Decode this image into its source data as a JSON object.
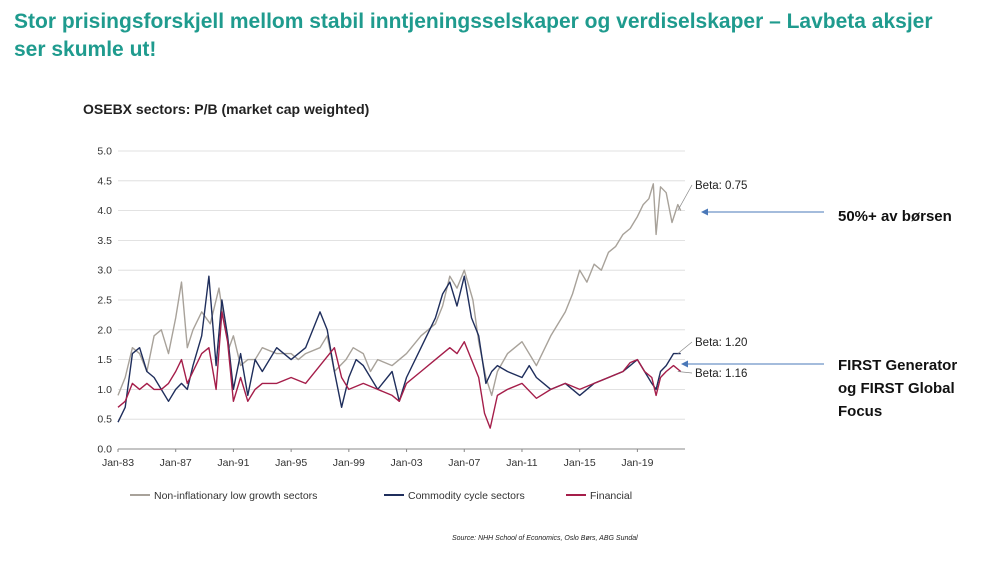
{
  "slide": {
    "title": "Stor prisingsforskjell mellom stabil inntjeningsselskaper og verdiselskaper  – Lavbeta aksjer ser skumle ut!",
    "note_low_beta": "50%+ av børsen",
    "note_high_beta": "FIRST Generator og FIRST Global Focus",
    "source": "Source: NHH School of Economics, Oslo Børs, ABG Sundal"
  },
  "chart_data": {
    "type": "line",
    "title": "OSEBX sectors: P/B (market cap weighted)",
    "xlabel": "",
    "ylabel": "",
    "xlim": [
      1983.0,
      2022.3
    ],
    "ylim": [
      0.0,
      5.0
    ],
    "x_ticks": [
      "Jan-83",
      "Jan-87",
      "Jan-91",
      "Jan-95",
      "Jan-99",
      "Jan-03",
      "Jan-07",
      "Jan-11",
      "Jan-15",
      "Jan-19"
    ],
    "y_ticks": [
      "0.0",
      "0.5",
      "1.0",
      "1.5",
      "2.0",
      "2.5",
      "3.0",
      "3.5",
      "4.0",
      "4.5",
      "5.0"
    ],
    "grid": "horizontal",
    "legend_position": "bottom",
    "colors": {
      "non_inflationary": "#a8a29a",
      "commodity": "#1f2e5c",
      "financial": "#a51e4a"
    },
    "series": [
      {
        "name": "Non-inflationary low growth sectors",
        "color": "#a8a29a",
        "x": [
          1983.0,
          1983.5,
          1984.0,
          1984.5,
          1985.0,
          1985.5,
          1986.0,
          1986.5,
          1987.0,
          1987.4,
          1987.8,
          1988.2,
          1988.8,
          1989.4,
          1990.0,
          1990.3,
          1990.7,
          1991.0,
          1991.5,
          1992.0,
          1992.5,
          1993.0,
          1994.0,
          1995.0,
          1995.5,
          1996.0,
          1997.0,
          1997.5,
          1998.0,
          1998.8,
          1999.3,
          2000.0,
          2000.5,
          2001.0,
          2002.0,
          2003.0,
          2004.0,
          2005.0,
          2005.5,
          2006.0,
          2006.5,
          2007.0,
          2007.6,
          2008.0,
          2008.5,
          2008.9,
          2009.3,
          2010.0,
          2011.0,
          2012.0,
          2013.0,
          2014.0,
          2014.5,
          2015.0,
          2015.5,
          2016.0,
          2016.5,
          2017.0,
          2017.5,
          2018.0,
          2018.5,
          2019.0,
          2019.4,
          2019.8,
          2020.1,
          2020.3,
          2020.6,
          2021.0,
          2021.4,
          2021.8,
          2022.0
        ],
        "y": [
          0.9,
          1.2,
          1.7,
          1.6,
          1.3,
          1.9,
          2.0,
          1.6,
          2.2,
          2.8,
          1.7,
          2.0,
          2.3,
          2.1,
          2.7,
          2.2,
          1.7,
          1.9,
          1.4,
          1.5,
          1.5,
          1.7,
          1.6,
          1.6,
          1.5,
          1.6,
          1.7,
          1.9,
          1.3,
          1.5,
          1.7,
          1.6,
          1.3,
          1.5,
          1.4,
          1.6,
          1.9,
          2.1,
          2.4,
          2.9,
          2.7,
          3.0,
          2.5,
          1.8,
          1.2,
          0.9,
          1.3,
          1.6,
          1.8,
          1.4,
          1.9,
          2.3,
          2.6,
          3.0,
          2.8,
          3.1,
          3.0,
          3.3,
          3.4,
          3.6,
          3.7,
          3.9,
          4.1,
          4.2,
          4.45,
          3.6,
          4.4,
          4.3,
          3.8,
          4.1,
          4.0
        ]
      },
      {
        "name": "Commodity cycle sectors",
        "color": "#1f2e5c",
        "x": [
          1983.0,
          1983.5,
          1984.0,
          1984.5,
          1985.0,
          1985.5,
          1986.0,
          1986.5,
          1987.0,
          1987.4,
          1987.8,
          1988.2,
          1988.8,
          1989.3,
          1989.8,
          1990.2,
          1990.6,
          1991.0,
          1991.5,
          1992.0,
          1992.5,
          1993.0,
          1994.0,
          1995.0,
          1996.0,
          1997.0,
          1997.5,
          1998.0,
          1998.5,
          1999.0,
          1999.5,
          2000.0,
          2001.0,
          2002.0,
          2002.5,
          2003.0,
          2004.0,
          2005.0,
          2005.5,
          2006.0,
          2006.5,
          2007.0,
          2007.5,
          2008.0,
          2008.5,
          2008.9,
          2009.3,
          2010.0,
          2011.0,
          2011.5,
          2012.0,
          2013.0,
          2014.0,
          2015.0,
          2015.5,
          2016.0,
          2017.0,
          2018.0,
          2018.5,
          2019.0,
          2019.5,
          2020.0,
          2020.3,
          2020.6,
          2021.0,
          2021.5,
          2022.0
        ],
        "y": [
          0.45,
          0.7,
          1.6,
          1.7,
          1.3,
          1.2,
          1.0,
          0.8,
          1.0,
          1.1,
          1.0,
          1.4,
          1.9,
          2.9,
          1.4,
          2.5,
          1.9,
          1.0,
          1.6,
          0.9,
          1.5,
          1.3,
          1.7,
          1.5,
          1.7,
          2.3,
          2.0,
          1.3,
          0.7,
          1.2,
          1.5,
          1.4,
          1.0,
          1.3,
          0.8,
          1.2,
          1.7,
          2.2,
          2.6,
          2.8,
          2.4,
          2.9,
          2.2,
          1.9,
          1.1,
          1.3,
          1.4,
          1.3,
          1.2,
          1.4,
          1.2,
          1.0,
          1.1,
          0.9,
          1.0,
          1.1,
          1.2,
          1.3,
          1.4,
          1.5,
          1.3,
          1.1,
          1.0,
          1.3,
          1.4,
          1.6,
          1.6
        ]
      },
      {
        "name": "Financial",
        "color": "#a51e4a",
        "x": [
          1983.0,
          1983.5,
          1984.0,
          1984.5,
          1985.0,
          1985.5,
          1986.0,
          1986.5,
          1987.0,
          1987.4,
          1987.8,
          1988.2,
          1988.8,
          1989.3,
          1989.8,
          1990.2,
          1990.6,
          1991.0,
          1991.5,
          1992.0,
          1992.5,
          1993.0,
          1994.0,
          1995.0,
          1996.0,
          1997.0,
          1998.0,
          1998.5,
          1999.0,
          2000.0,
          2001.0,
          2002.0,
          2002.5,
          2003.0,
          2004.0,
          2005.0,
          2006.0,
          2006.5,
          2007.0,
          2007.5,
          2008.0,
          2008.4,
          2008.8,
          2009.3,
          2010.0,
          2011.0,
          2012.0,
          2013.0,
          2014.0,
          2015.0,
          2016.0,
          2017.0,
          2018.0,
          2018.5,
          2019.0,
          2019.5,
          2020.0,
          2020.3,
          2020.6,
          2021.0,
          2021.5,
          2022.0
        ],
        "y": [
          0.7,
          0.8,
          1.1,
          1.0,
          1.1,
          1.0,
          1.0,
          1.1,
          1.3,
          1.5,
          1.1,
          1.3,
          1.6,
          1.7,
          1.0,
          2.3,
          1.8,
          0.8,
          1.2,
          0.8,
          1.0,
          1.1,
          1.1,
          1.2,
          1.1,
          1.4,
          1.7,
          1.2,
          1.0,
          1.1,
          1.0,
          0.9,
          0.8,
          1.1,
          1.3,
          1.5,
          1.7,
          1.6,
          1.8,
          1.5,
          1.2,
          0.6,
          0.35,
          0.9,
          1.0,
          1.1,
          0.85,
          1.0,
          1.1,
          1.0,
          1.1,
          1.2,
          1.3,
          1.45,
          1.5,
          1.3,
          1.2,
          0.9,
          1.2,
          1.3,
          1.4,
          1.3
        ]
      }
    ],
    "annotations": [
      {
        "label": "Beta: 0.75",
        "x": 2021.8,
        "y": 4.0,
        "series": "Non-inflationary low growth sectors"
      },
      {
        "label": "Beta: 1.20",
        "x": 2021.8,
        "y": 1.6,
        "series": "Commodity cycle sectors"
      },
      {
        "label": "Beta: 1.16",
        "x": 2021.8,
        "y": 1.3,
        "series": "Financial"
      }
    ]
  }
}
